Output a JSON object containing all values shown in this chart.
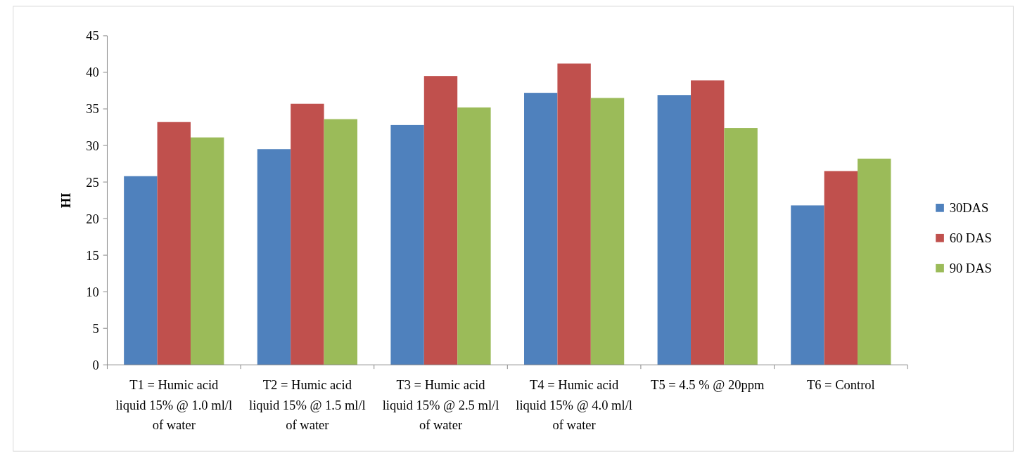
{
  "chart_data": {
    "type": "bar",
    "ylabel": "HI",
    "categories": [
      "T1 = Humic acid liquid 15% @ 1.0 ml/l of water",
      "T2 = Humic acid liquid 15% @ 1.5 ml/l of water",
      "T3 = Humic acid liquid 15% @ 2.5 ml/l of water",
      "T4 = Humic acid liquid 15% @ 4.0 ml/l of water",
      "T5 = 4.5 % @ 20ppm",
      "T6 = Control"
    ],
    "series": [
      {
        "name": "30DAS",
        "color": "#4f81bd",
        "values": [
          25.8,
          29.5,
          32.8,
          37.2,
          36.9,
          21.8
        ]
      },
      {
        "name": "60 DAS",
        "color": "#c0504d",
        "values": [
          33.2,
          35.7,
          39.5,
          41.2,
          38.9,
          26.5
        ]
      },
      {
        "name": "90 DAS",
        "color": "#9bbb59",
        "values": [
          31.1,
          33.6,
          35.2,
          36.5,
          32.4,
          28.2
        ]
      }
    ],
    "ylim": [
      0,
      45
    ],
    "yticks": [
      0,
      5,
      10,
      15,
      20,
      25,
      30,
      35,
      40,
      45
    ],
    "grid": false,
    "legend": "right"
  }
}
